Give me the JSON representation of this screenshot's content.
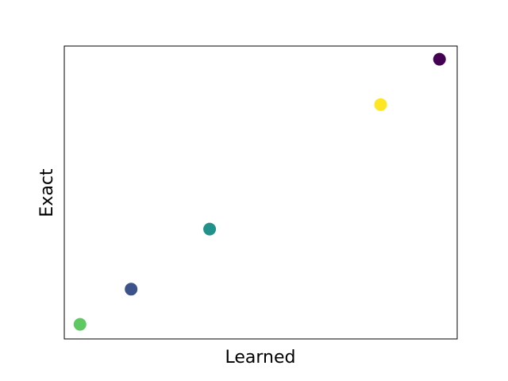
{
  "chart_data": {
    "type": "scatter",
    "title": "",
    "xlabel": "Learned",
    "ylabel": "Exact",
    "xticks": [],
    "yticks": [],
    "grid": false,
    "legend": "none",
    "xlim": [
      0.0,
      1.0
    ],
    "ylim": [
      0.0,
      1.0
    ],
    "points": [
      {
        "x": 0.04,
        "y": 0.05,
        "color": "#5ec962"
      },
      {
        "x": 0.17,
        "y": 0.17,
        "color": "#3b528b"
      },
      {
        "x": 0.37,
        "y": 0.375,
        "color": "#21918c"
      },
      {
        "x": 0.805,
        "y": 0.8,
        "color": "#fde725"
      },
      {
        "x": 0.955,
        "y": 0.955,
        "color": "#440154"
      }
    ]
  }
}
